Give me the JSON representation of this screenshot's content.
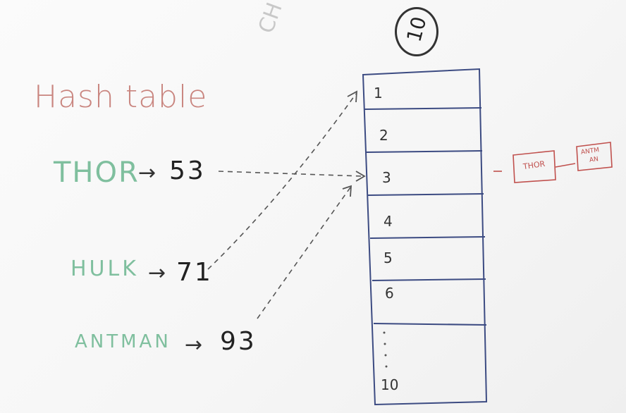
{
  "title": "Hash table",
  "corner_note": "CH",
  "size_circle": "10",
  "entries": [
    {
      "key": "THOR",
      "arrow": "→",
      "hash": "53"
    },
    {
      "key": "HULK",
      "arrow": "→",
      "hash": "71"
    },
    {
      "key": "ANTMAN",
      "arrow": "→",
      "hash": "93"
    }
  ],
  "slots": [
    "1",
    "2",
    "3",
    "4",
    "5",
    "6",
    "10"
  ],
  "chain": {
    "node1": "THOR",
    "node2_line1": "ANTM",
    "node2_line2": "AN"
  }
}
